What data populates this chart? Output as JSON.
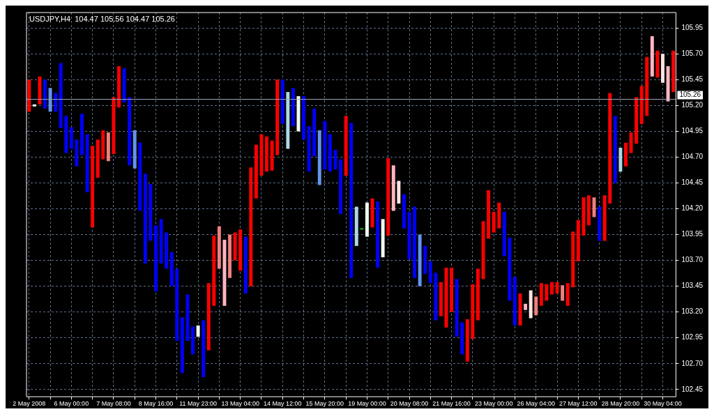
{
  "chart_data": {
    "type": "bar",
    "title": "USDJPY,H4  104.47 105.56 104.47 105.26",
    "categories": [
      "2 May 2008",
      null,
      null,
      null,
      null,
      null,
      null,
      null,
      "6 May 00:00",
      null,
      null,
      null,
      null,
      null,
      null,
      null,
      "7 May 08:00",
      null,
      null,
      null,
      null,
      null,
      null,
      null,
      "8 May 16:00",
      null,
      null,
      null,
      null,
      null,
      null,
      null,
      "11 May 23:00",
      null,
      null,
      null,
      null,
      null,
      null,
      null,
      "13 May 04:00",
      null,
      null,
      null,
      null,
      null,
      null,
      null,
      "14 May 12:00",
      null,
      null,
      null,
      null,
      null,
      null,
      null,
      "15 May 20:00",
      null,
      null,
      null,
      null,
      null,
      null,
      null,
      "19 May 00:00",
      null,
      null,
      null,
      null,
      null,
      null,
      null,
      "20 May 08:00",
      null,
      null,
      null,
      null,
      null,
      null,
      null,
      "21 May 16:00",
      null,
      null,
      null,
      null,
      null,
      null,
      null,
      "23 May 00:00",
      null,
      null,
      null,
      null,
      null,
      null,
      null,
      "26 May 04:00",
      null,
      null,
      null,
      null,
      null,
      null,
      null,
      "27 May 12:00",
      null,
      null,
      null,
      null,
      null,
      null,
      null,
      "28 May 20:00",
      null,
      null,
      null,
      null,
      null,
      null,
      null,
      "30 May 04:00",
      null,
      null
    ],
    "base": [
      105.14,
      105.19,
      105.21,
      105.17,
      105.14,
      105.14,
      104.98,
      104.74,
      104.78,
      104.61,
      104.72,
      104.36,
      104.02,
      104.5,
      104.68,
      104.66,
      104.73,
      105.18,
      105.23,
      104.62,
      104.59,
      104.18,
      103.67,
      103.89,
      103.4,
      103.67,
      103.62,
      103.45,
      102.92,
      102.61,
      102.92,
      102.79,
      102.96,
      102.57,
      102.83,
      103.26,
      103.62,
      103.26,
      103.53,
      103.7,
      103.6,
      103.38,
      103.45,
      104.3,
      104.52,
      104.56,
      104.57,
      104.72,
      105.02,
      104.78,
      105.0,
      104.95,
      104.87,
      104.56,
      104.71,
      104.43,
      104.58,
      104.56,
      104.58,
      104.15,
      104.52,
      103.53,
      103.84,
      104.0,
      103.93,
      104.02,
      103.63,
      103.73,
      103.94,
      104.18,
      104.25,
      104.01,
      103.71,
      103.53,
      103.45,
      103.57,
      103.48,
      103.12,
      103.16,
      103.05,
      103.2,
      102.96,
      102.79,
      102.72,
      102.94,
      103.12,
      103.52,
      103.91,
      103.97,
      104.01,
      103.74,
      103.31,
      103.07,
      103.07,
      103.22,
      103.14,
      103.17,
      103.26,
      103.31,
      103.37,
      103.38,
      103.31,
      103.26,
      103.44,
      103.69,
      103.94,
      104.04,
      104.12,
      103.89,
      103.89,
      104.25,
      104.45,
      104.56,
      104.61,
      104.74,
      104.83,
      105.02,
      105.1,
      105.48,
      105.47,
      105.42,
      105.24,
      105.33
    ],
    "values": [
      0.31,
      0.02,
      0.27,
      0.28,
      0.23,
      0.18,
      0.63,
      0.36,
      0.21,
      0.26,
      0.4,
      0.56,
      0.79,
      0.37,
      0.28,
      0.28,
      0.55,
      0.4,
      0.33,
      0.66,
      0.37,
      0.66,
      0.87,
      0.55,
      0.64,
      0.43,
      0.35,
      0.33,
      0.7,
      0.54,
      0.45,
      0.27,
      0.11,
      0.55,
      0.65,
      0.68,
      0.41,
      0.64,
      0.42,
      0.27,
      0.4,
      0.55,
      1.15,
      0.52,
      0.4,
      0.34,
      0.29,
      0.73,
      0.43,
      0.55,
      0.37,
      0.34,
      0.42,
      0.44,
      0.46,
      0.53,
      0.47,
      0.36,
      0.19,
      0.53,
      0.58,
      1.5,
      0.38,
      0.01,
      0.33,
      0.28,
      0.64,
      0.37,
      0.75,
      0.44,
      0.22,
      0.33,
      0.46,
      0.69,
      0.5,
      0.27,
      0.21,
      0.46,
      0.33,
      0.58,
      0.43,
      0.56,
      0.31,
      0.41,
      0.53,
      0.5,
      0.56,
      0.47,
      0.2,
      0.25,
      0.43,
      0.61,
      0.47,
      0.31,
      0.06,
      0.27,
      0.18,
      0.22,
      0.16,
      0.12,
      0.11,
      0.15,
      0.22,
      0.54,
      0.4,
      0.37,
      0.29,
      0.19,
      0.33,
      0.44,
      1.07,
      0.65,
      0.23,
      0.23,
      0.2,
      0.45,
      0.37,
      0.57,
      0.39,
      0.26,
      0.28,
      0.34,
      0.4
    ],
    "colors": [
      "#ff0000",
      "#f0fff0",
      "#ff0000",
      "#0000ff",
      "#6495ed",
      "#0000ff",
      "#0000ff",
      "#0000ff",
      "#0000ff",
      "#0000ff",
      "#0000ff",
      "#0000ff",
      "#ff0000",
      "#ff0000",
      "#ff0000",
      "#f08080",
      "#ff0000",
      "#ff0000",
      "#0000ff",
      "#0000ff",
      "#6495ed",
      "#0000ff",
      "#0000ff",
      "#0000ff",
      "#0000ff",
      "#0000ff",
      "#0000ff",
      "#0000ff",
      "#0000ff",
      "#0000ff",
      "#0000ff",
      "#0000ff",
      "#f0fff0",
      "#0000ff",
      "#ff0000",
      "#ff0000",
      "#f08080",
      "#ffb6c1",
      "#f08080",
      "#ff0000",
      "#ff0000",
      "#0000ff",
      "#ff0000",
      "#ff0000",
      "#ff0000",
      "#ff0000",
      "#ff0000",
      "#ff0000",
      "#0000ff",
      "#add8e6",
      "#0000ff",
      "#f0fff0",
      "#0000ff",
      "#0000ff",
      "#0000ff",
      "#6495ed",
      "#0000ff",
      "#0000ff",
      "#0000ff",
      "#0000ff",
      "#ff0000",
      "#0000ff",
      "#add8e6",
      "#00ff00",
      "#f0fff0",
      "#ff0000",
      "#0000ff",
      "#f0fff0",
      "#ff0000",
      "#ffb6c1",
      "#ffe4e1",
      "#0000ff",
      "#0000ff",
      "#0000ff",
      "#6495ed",
      "#0000ff",
      "#0000ff",
      "#0000ff",
      "#ff0000",
      "#ff0000",
      "#ff0000",
      "#0000ff",
      "#0000ff",
      "#ff0000",
      "#ff0000",
      "#ff0000",
      "#ff0000",
      "#ff0000",
      "#ff0000",
      "#ff0000",
      "#0000ff",
      "#0000ff",
      "#0000ff",
      "#ff0000",
      "#ffb6c1",
      "#ffe4e1",
      "#f08080",
      "#ff0000",
      "#ff0000",
      "#ff0000",
      "#ff0000",
      "#f08080",
      "#ff0000",
      "#ff0000",
      "#ff0000",
      "#ff0000",
      "#ff0000",
      "#f08080",
      "#0000ff",
      "#ff0000",
      "#ff0000",
      "#0000ff",
      "#add8e6",
      "#ff0000",
      "#ff0000",
      "#ff0000",
      "#ff0000",
      "#ff0000",
      "#ffb6c1",
      "#ff0000",
      "#ffe4e1",
      "#ffb6c1",
      "#ff0000"
    ],
    "ylim": [
      102.38,
      106.1
    ],
    "yticks": [
      {
        "value": 102.45,
        "label": "102.45"
      },
      {
        "value": 102.7,
        "label": "102.70"
      },
      {
        "value": 102.95,
        "label": "102.95"
      },
      {
        "value": 103.2,
        "label": "103.20"
      },
      {
        "value": 103.45,
        "label": "103.45"
      },
      {
        "value": 103.7,
        "label": "103.70"
      },
      {
        "value": 103.95,
        "label": "103.95"
      },
      {
        "value": 104.2,
        "label": "104.20"
      },
      {
        "value": 104.45,
        "label": "104.45"
      },
      {
        "value": 104.7,
        "label": "104.70"
      },
      {
        "value": 104.95,
        "label": "104.95"
      },
      {
        "value": 105.2,
        "label": "105.20"
      },
      {
        "value": 105.45,
        "label": "105.45"
      },
      {
        "value": 105.7,
        "label": "105.70"
      },
      {
        "value": 105.95,
        "label": "105.95"
      }
    ],
    "ref_lines": [
      {
        "axis": "y",
        "value": 105.26,
        "label": "105.26",
        "color": "#9aa8bc"
      }
    ],
    "grid": true,
    "legend": false
  }
}
